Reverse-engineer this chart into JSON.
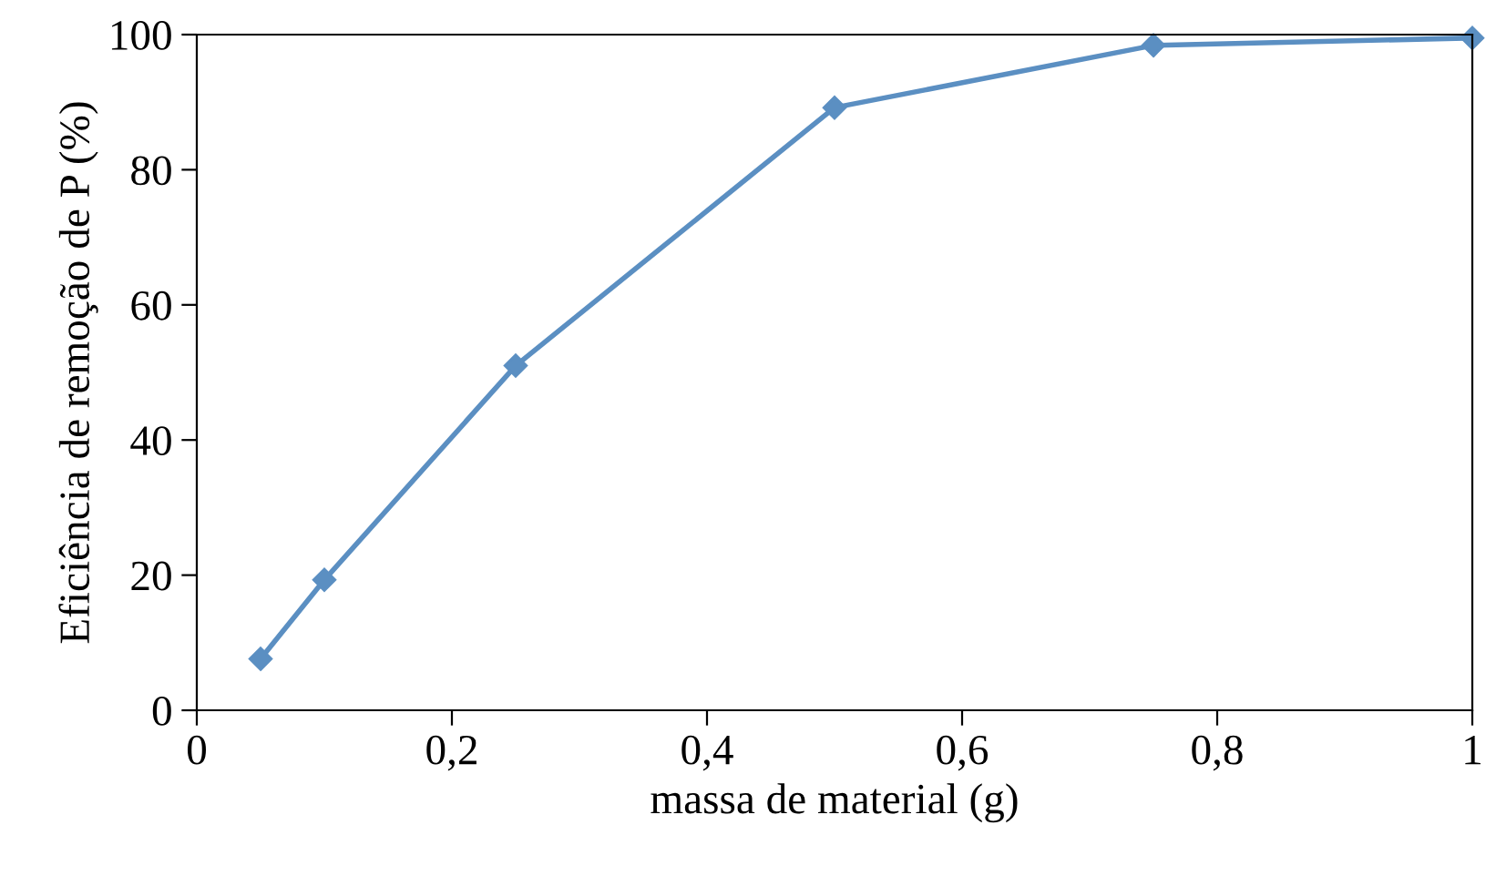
{
  "chart_data": {
    "type": "line",
    "xlabel": "massa de material (g)",
    "ylabel": "Eficiência de remoção de P (%)",
    "x": [
      0.05,
      0.1,
      0.25,
      0.5,
      0.75,
      1.0
    ],
    "series": [
      {
        "color": "#5b8fc2",
        "values": [
          7.6,
          19.3,
          51,
          89.2,
          98.4,
          99.5
        ]
      }
    ],
    "xlim": [
      0,
      1
    ],
    "ylim": [
      0,
      100
    ],
    "xticks": [
      {
        "value": 0,
        "label": "0"
      },
      {
        "value": 0.2,
        "label": "0,2"
      },
      {
        "value": 0.4,
        "label": "0,4"
      },
      {
        "value": 0.6,
        "label": "0,6"
      },
      {
        "value": 0.8,
        "label": "0,8"
      },
      {
        "value": 1,
        "label": "1"
      }
    ],
    "yticks": [
      0,
      20,
      40,
      60,
      80,
      100
    ],
    "marker": "diamond",
    "line_style": "solid",
    "grid": false,
    "legend": false
  }
}
